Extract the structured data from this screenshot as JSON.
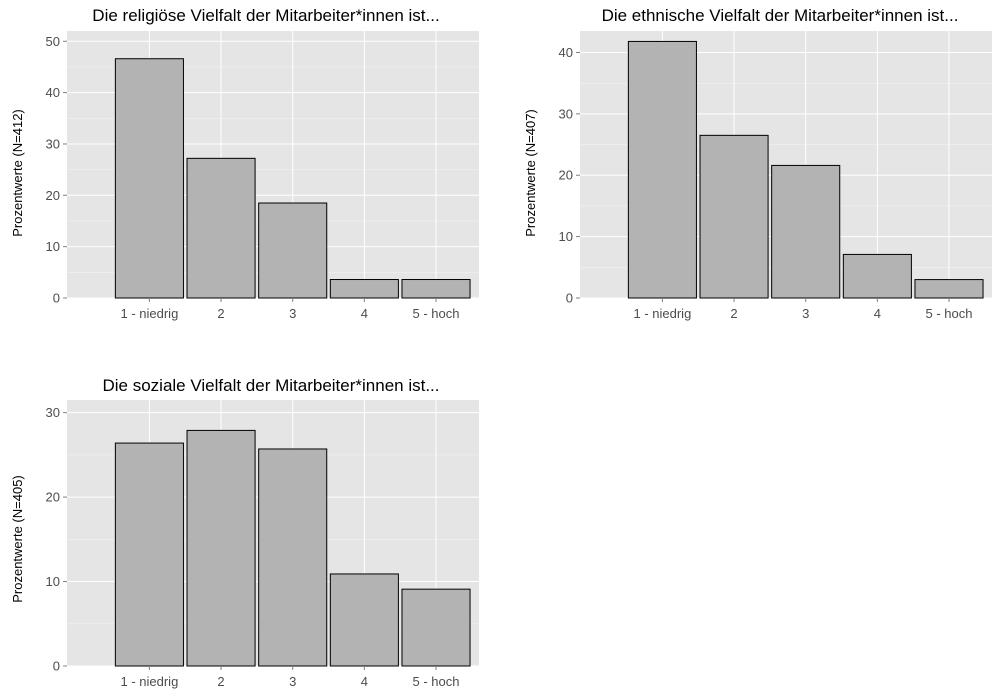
{
  "chart_data": [
    {
      "type": "bar",
      "title": "Die religiöse Vielfalt der Mitarbeiter*innen ist...",
      "xlabel": "",
      "ylabel": "Prozentwerte (N=412)",
      "categories": [
        "1 - niedrig",
        "2",
        "3",
        "4",
        "5 - hoch"
      ],
      "values": [
        46.6,
        27.2,
        18.5,
        3.6,
        3.6
      ],
      "ylim": [
        0,
        52
      ],
      "yticks": [
        0,
        10,
        20,
        30,
        40,
        50
      ],
      "grid": true,
      "bar_color": "#b3b3b3",
      "panel_color": "#e5e5e5"
    },
    {
      "type": "bar",
      "title": "Die ethnische Vielfalt der Mitarbeiter*innen ist...",
      "xlabel": "",
      "ylabel": "Prozentwerte (N=407)",
      "categories": [
        "1 - niedrig",
        "2",
        "3",
        "4",
        "5 - hoch"
      ],
      "values": [
        41.8,
        26.5,
        21.6,
        7.1,
        3.0
      ],
      "ylim": [
        0,
        43.5
      ],
      "yticks": [
        0,
        10,
        20,
        30,
        40
      ],
      "grid": true,
      "bar_color": "#b3b3b3",
      "panel_color": "#e5e5e5"
    },
    {
      "type": "bar",
      "title": "Die soziale Vielfalt der Mitarbeiter*innen ist...",
      "xlabel": "",
      "ylabel": "Prozentwerte (N=405)",
      "categories": [
        "1 - niedrig",
        "2",
        "3",
        "4",
        "5 - hoch"
      ],
      "values": [
        26.4,
        27.9,
        25.7,
        10.9,
        9.1
      ],
      "ylim": [
        0,
        31.5
      ],
      "yticks": [
        0,
        10,
        20,
        30
      ],
      "grid": true,
      "bar_color": "#b3b3b3",
      "panel_color": "#e5e5e5"
    }
  ]
}
